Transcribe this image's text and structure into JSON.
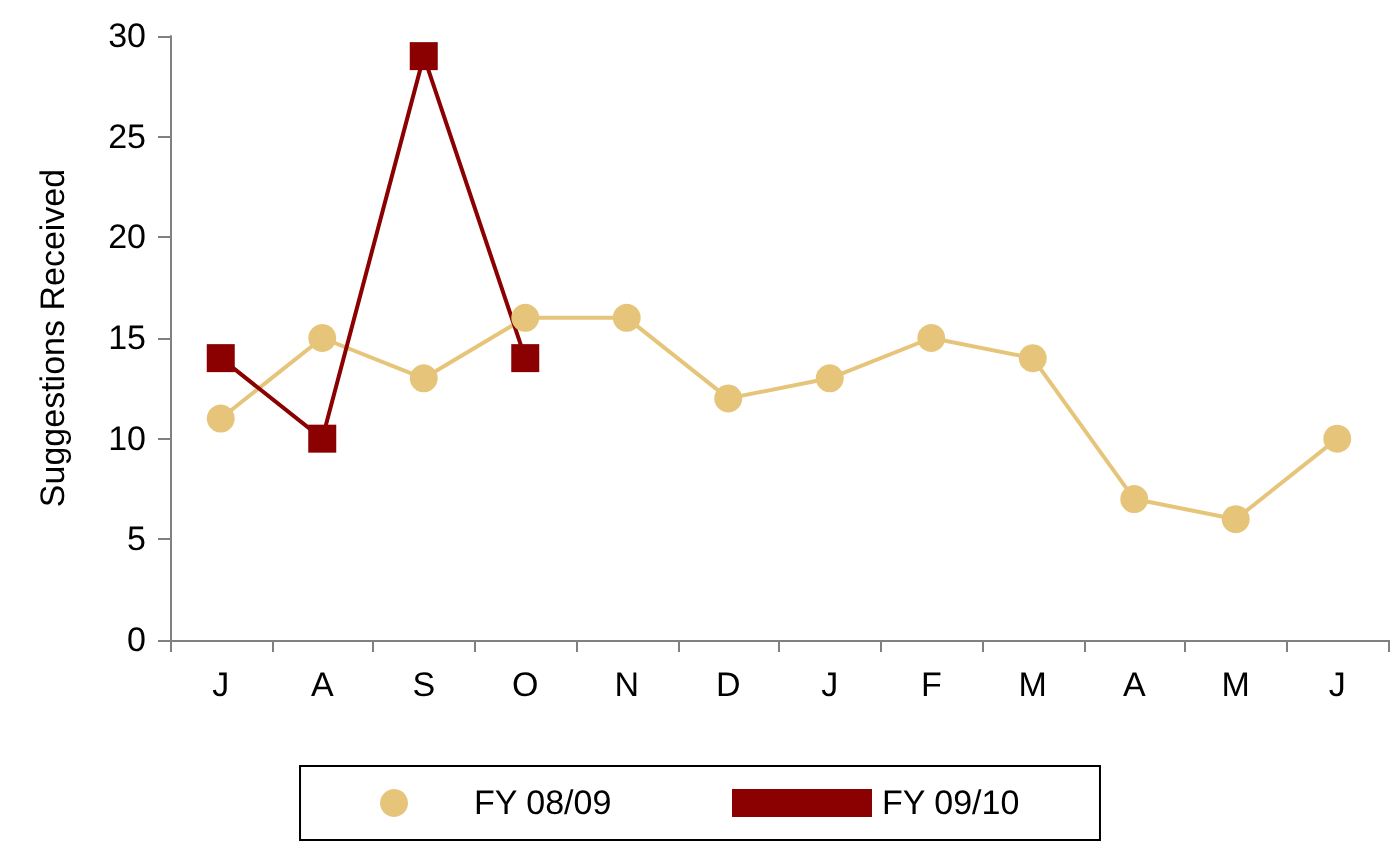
{
  "chart_data": {
    "type": "line",
    "ylabel": "Suggestions Received",
    "categories": [
      "J",
      "A",
      "S",
      "O",
      "N",
      "D",
      "J",
      "F",
      "M",
      "A",
      "M",
      "J"
    ],
    "series": [
      {
        "name": "FY 08/09",
        "color": "#e6c57a",
        "marker": "circle",
        "values": [
          11,
          15,
          13,
          16,
          16,
          12,
          13,
          15,
          14,
          7,
          6,
          10
        ]
      },
      {
        "name": "FY 09/10",
        "color": "#8b0000",
        "marker": "square",
        "values": [
          14,
          10,
          29,
          14,
          null,
          null,
          null,
          null,
          null,
          null,
          null,
          null
        ]
      }
    ],
    "ylim": [
      0,
      30
    ],
    "yticks": [
      0,
      5,
      10,
      15,
      20,
      25,
      30
    ],
    "grid": false,
    "legend": "bottom",
    "line_style": "solid"
  }
}
